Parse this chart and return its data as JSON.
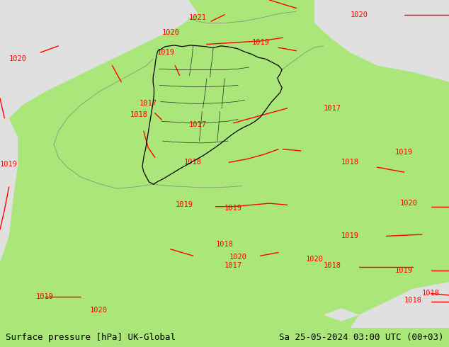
{
  "title_left": "Surface pressure [hPa] UK-Global",
  "title_right": "Sa 25-05-2024 03:00 UTC (00+03)",
  "background_land_color": "#aae67a",
  "background_sea_color": "#e0e0e0",
  "border_color": "#000000",
  "isobar_color": "#ff0000",
  "bottom_bar_color": "#ccee99",
  "bottom_text_color": "#000000",
  "fig_width": 6.34,
  "fig_height": 4.9,
  "dpi": 100,
  "label_fontsize": 7.5,
  "title_fontsize": 9
}
